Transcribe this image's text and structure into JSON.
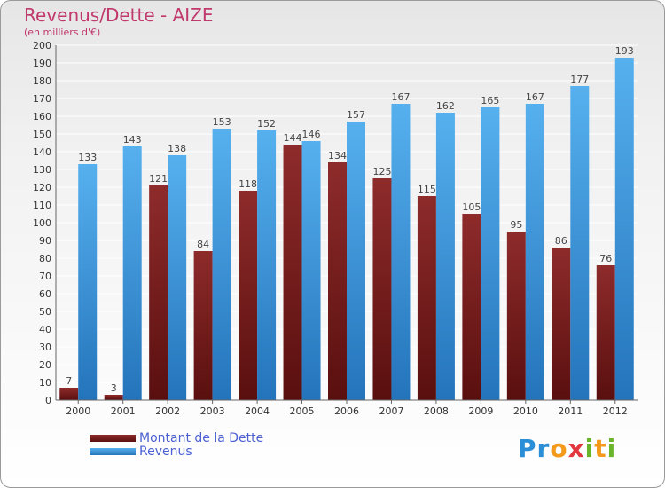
{
  "chart_data": {
    "type": "bar",
    "title": "Revenus/Dette - AIZE",
    "subtitle": "(en milliers d'€)",
    "categories": [
      "2000",
      "2001",
      "2002",
      "2003",
      "2004",
      "2005",
      "2006",
      "2007",
      "2008",
      "2009",
      "2010",
      "2011",
      "2012"
    ],
    "series": [
      {
        "name": "Montant de la Dette",
        "color": "#7a1c1c",
        "values": [
          7,
          3,
          121,
          84,
          118,
          144,
          134,
          125,
          115,
          105,
          95,
          86,
          76
        ]
      },
      {
        "name": "Revenus",
        "color": "#3d9be2",
        "values": [
          133,
          143,
          138,
          153,
          152,
          146,
          157,
          167,
          162,
          165,
          167,
          177,
          193
        ]
      }
    ],
    "ylim": [
      0,
      200
    ],
    "yticks": [
      0,
      10,
      20,
      30,
      40,
      50,
      60,
      70,
      80,
      90,
      100,
      110,
      120,
      130,
      140,
      150,
      160,
      170,
      180,
      190,
      200
    ],
    "grid": true,
    "legend_position": "bottom-left"
  },
  "logo": {
    "letters": [
      {
        "ch": "P",
        "color": "#2a8fd6"
      },
      {
        "ch": "r",
        "color": "#2a8fd6"
      },
      {
        "ch": "o",
        "color": "#f39a1c"
      },
      {
        "ch": "x",
        "color": "#e2373f"
      },
      {
        "ch": "i",
        "color": "#6bb52b"
      },
      {
        "ch": "t",
        "color": "#f39a1c"
      },
      {
        "ch": "i",
        "color": "#6bb52b"
      }
    ]
  }
}
